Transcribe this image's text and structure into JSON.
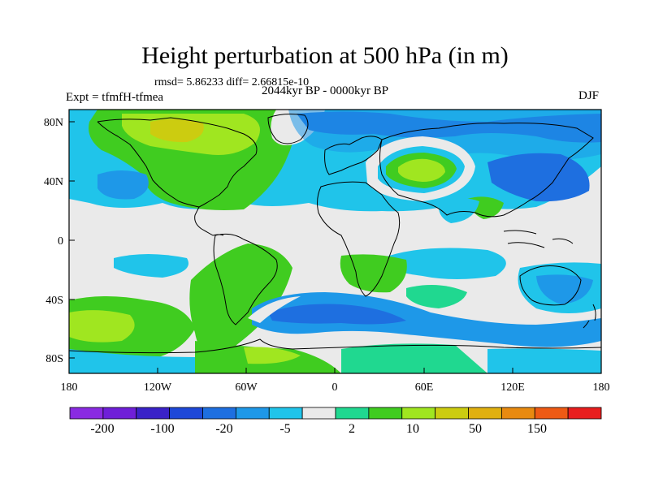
{
  "title": "Height perturbation at 500 hPa (in m)",
  "stats": "rmsd= 5.86233 diff= 2.66815e-10",
  "experiment": "Expt = tfmfH-tfmea",
  "period": "2044kyr BP - 0000kyr BP",
  "season": "DJF",
  "lat_ticks": [
    "80N",
    "40N",
    "0",
    "40S",
    "80S"
  ],
  "lon_ticks": [
    "180",
    "120W",
    "60W",
    "0",
    "60E",
    "120E",
    "180"
  ],
  "colorbar": {
    "colors": [
      "#8a2be2",
      "#6f1fd8",
      "#3a22c8",
      "#1e48d8",
      "#1e6fe0",
      "#1e98e8",
      "#20c4ea",
      "#eaeaea",
      "#20d890",
      "#40cc20",
      "#a0e620",
      "#cccc10",
      "#e0b010",
      "#e88a10",
      "#ee5a14",
      "#e81e1e"
    ],
    "labels": [
      "-200",
      "-100",
      "-20",
      "-5",
      "2",
      "10",
      "50",
      "150"
    ]
  },
  "legend_colors": {
    "neutral": "#eaeaea",
    "light_blue": "#20c4ea",
    "mid_blue": "#1e98e8",
    "blue": "#1e6fe0",
    "green_cyan": "#20d890",
    "green": "#40cc20",
    "yellow_green": "#a0e620",
    "yellow": "#cccc10"
  }
}
